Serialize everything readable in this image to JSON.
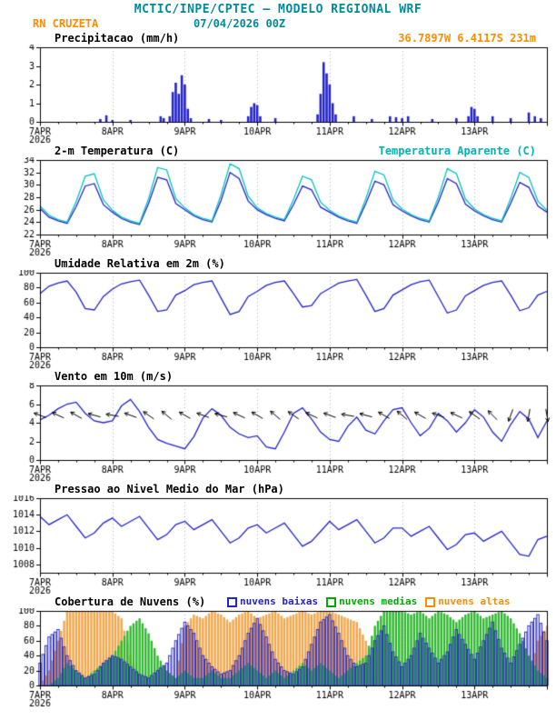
{
  "header": {
    "title": "MCTIC/INPE/CPTEC — MODELO REGIONAL WRF",
    "station": "RN CRUZETA",
    "run": "07/04/2026 00Z",
    "coords": "36.7897W 6.4117S 231m"
  },
  "colors": {
    "teal": "#008b9b",
    "orange": "#ff8c00",
    "blue": "#2424cc",
    "cyan": "#00c3c3",
    "green": "#00aa00",
    "grid": "#b0b0b0",
    "axis": "#000000"
  },
  "x_axis": {
    "labels": [
      "7APR",
      "8APR",
      "9APR",
      "10APR",
      "11APR",
      "12APR",
      "13APR"
    ],
    "year": "2026",
    "hours_max": 168,
    "major_tick_hours": 24,
    "minor_tick_hours": 6
  },
  "chart_data": [
    {
      "id": "precipitation",
      "type": "bar",
      "title": "Precipitacao (mm/h)",
      "ylim": [
        0,
        4
      ],
      "yticks": [
        0,
        1,
        2,
        3,
        4
      ],
      "bar_color": "#2424cc",
      "points": [
        [
          20,
          0.15
        ],
        [
          22,
          0.35
        ],
        [
          24,
          0.1
        ],
        [
          30,
          0.1
        ],
        [
          40,
          0.3
        ],
        [
          41,
          0.2
        ],
        [
          43,
          0.3
        ],
        [
          44,
          1.6
        ],
        [
          45,
          2.1
        ],
        [
          46,
          1.5
        ],
        [
          47,
          2.5
        ],
        [
          48,
          2.0
        ],
        [
          49,
          0.7
        ],
        [
          50,
          0.2
        ],
        [
          56,
          0.15
        ],
        [
          60,
          0.1
        ],
        [
          69,
          0.3
        ],
        [
          70,
          0.8
        ],
        [
          71,
          1.0
        ],
        [
          72,
          0.9
        ],
        [
          73,
          0.3
        ],
        [
          78,
          0.2
        ],
        [
          92,
          0.4
        ],
        [
          93,
          1.5
        ],
        [
          94,
          3.2
        ],
        [
          95,
          2.6
        ],
        [
          96,
          2.0
        ],
        [
          97,
          1.0
        ],
        [
          98,
          0.4
        ],
        [
          104,
          0.3
        ],
        [
          110,
          0.15
        ],
        [
          116,
          0.3
        ],
        [
          118,
          0.25
        ],
        [
          120,
          0.2
        ],
        [
          122,
          0.3
        ],
        [
          130,
          0.15
        ],
        [
          138,
          0.2
        ],
        [
          142,
          0.3
        ],
        [
          143,
          0.8
        ],
        [
          144,
          0.7
        ],
        [
          145,
          0.3
        ],
        [
          150,
          0.3
        ],
        [
          156,
          0.2
        ],
        [
          162,
          0.5
        ],
        [
          164,
          0.3
        ],
        [
          166,
          0.2
        ]
      ]
    },
    {
      "id": "temperature",
      "type": "line",
      "title": "2-m Temperatura (C)",
      "right_label": "Temperatura Aparente (C)",
      "ylim": [
        22,
        34
      ],
      "yticks": [
        22,
        24,
        26,
        28,
        30,
        32,
        34
      ],
      "step_hours": 3,
      "series": [
        {
          "name": "2-m Temperatura (C)",
          "color": "#2424cc",
          "values": [
            26.2,
            24.8,
            24.2,
            23.8,
            26.5,
            29.8,
            30.2,
            26.8,
            25.6,
            24.6,
            24.0,
            23.6,
            27.0,
            31.2,
            30.8,
            27.0,
            26.0,
            25.0,
            24.4,
            24.0,
            27.5,
            32.0,
            31.0,
            27.4,
            26.0,
            25.2,
            24.6,
            24.2,
            26.8,
            29.8,
            29.2,
            26.4,
            25.6,
            24.8,
            24.2,
            23.8,
            27.0,
            30.6,
            30.0,
            26.8,
            25.8,
            25.0,
            24.4,
            24.0,
            27.2,
            31.0,
            30.2,
            26.9,
            25.8,
            25.0,
            24.4,
            24.0,
            27.0,
            30.4,
            29.6,
            26.6,
            25.6
          ]
        },
        {
          "name": "Temperatura Aparente (C)",
          "color": "#00c3c3",
          "values": [
            26.6,
            25.1,
            24.4,
            24.0,
            27.3,
            31.4,
            31.8,
            27.6,
            25.9,
            24.8,
            24.2,
            23.8,
            27.8,
            32.8,
            32.4,
            27.8,
            26.3,
            25.2,
            24.6,
            24.2,
            28.4,
            33.4,
            32.6,
            28.2,
            26.3,
            25.4,
            24.8,
            24.4,
            27.6,
            31.4,
            30.8,
            27.2,
            25.9,
            25.0,
            24.4,
            24.0,
            27.8,
            32.2,
            31.6,
            27.6,
            26.1,
            25.2,
            24.6,
            24.2,
            28.0,
            32.6,
            31.8,
            27.7,
            26.1,
            25.2,
            24.6,
            24.2,
            27.8,
            32.0,
            31.2,
            27.4,
            25.9
          ]
        }
      ]
    },
    {
      "id": "humidity",
      "type": "line",
      "title": "Umidade Relativa em 2m (%)",
      "ylim": [
        0,
        100
      ],
      "yticks": [
        0,
        20,
        40,
        60,
        80,
        100
      ],
      "step_hours": 3,
      "series": [
        {
          "name": "Umidade Relativa em 2m (%)",
          "color": "#2424cc",
          "values": [
            72,
            82,
            86,
            89,
            74,
            52,
            50,
            68,
            78,
            85,
            88,
            90,
            70,
            48,
            50,
            70,
            76,
            84,
            87,
            89,
            66,
            44,
            48,
            68,
            75,
            83,
            87,
            89,
            72,
            54,
            56,
            72,
            79,
            86,
            89,
            91,
            70,
            48,
            52,
            70,
            77,
            84,
            88,
            90,
            68,
            46,
            50,
            69,
            76,
            83,
            87,
            89,
            70,
            49,
            53,
            70,
            75
          ]
        }
      ]
    },
    {
      "id": "wind",
      "type": "line",
      "title": "Vento em 10m (m/s)",
      "ylim": [
        0,
        8
      ],
      "yticks": [
        0,
        2,
        4,
        6,
        8
      ],
      "step_hours": 3,
      "series": [
        {
          "name": "Vento em 10m (m/s)",
          "color": "#2424cc",
          "values": [
            4.3,
            4.8,
            5.5,
            6.0,
            6.2,
            5.0,
            4.2,
            4.0,
            4.2,
            5.8,
            6.5,
            5.2,
            3.5,
            2.2,
            1.8,
            1.5,
            1.2,
            2.5,
            4.5,
            5.5,
            4.8,
            3.5,
            2.8,
            2.4,
            2.6,
            1.4,
            1.2,
            3.0,
            5.0,
            5.6,
            4.4,
            3.0,
            2.2,
            2.0,
            3.6,
            4.6,
            3.2,
            2.8,
            4.2,
            5.4,
            5.6,
            4.0,
            2.6,
            3.4,
            5.0,
            4.2,
            3.0,
            4.0,
            5.4,
            4.6,
            3.0,
            2.0,
            3.8,
            5.2,
            4.4,
            2.4,
            4.2
          ]
        }
      ],
      "barbs": {
        "step_hours": 6,
        "y": 4.8,
        "dirs": [
          110,
          115,
          120,
          105,
          100,
          110,
          125,
          130,
          120,
          110,
          105,
          115,
          120,
          130,
          125,
          115,
          110,
          100,
          105,
          120,
          130,
          120,
          110,
          115,
          125,
          135,
          20,
          10,
          350
        ]
      }
    },
    {
      "id": "pressure",
      "type": "line",
      "title": "Pressao ao Nivel Medio do Mar (hPa)",
      "ylim": [
        1007,
        1016
      ],
      "yticks": [
        1008,
        1010,
        1012,
        1014,
        1016
      ],
      "step_hours": 3,
      "series": [
        {
          "name": "Pressao ao Nivel Medio do Mar (hPa)",
          "color": "#2424cc",
          "values": [
            1013.8,
            1012.8,
            1013.4,
            1014.0,
            1012.6,
            1011.2,
            1011.8,
            1013.0,
            1013.6,
            1012.6,
            1013.2,
            1013.8,
            1012.4,
            1011.0,
            1011.6,
            1012.8,
            1013.2,
            1012.2,
            1012.8,
            1013.4,
            1012.0,
            1010.6,
            1011.2,
            1012.4,
            1012.8,
            1011.8,
            1012.4,
            1013.0,
            1011.6,
            1010.2,
            1010.8,
            1012.0,
            1013.2,
            1012.2,
            1012.8,
            1013.4,
            1012.0,
            1010.6,
            1011.2,
            1012.4,
            1012.4,
            1011.4,
            1012.0,
            1012.6,
            1011.2,
            1009.8,
            1010.4,
            1011.6,
            1011.8,
            1010.8,
            1011.4,
            1012.0,
            1010.6,
            1009.2,
            1009.0,
            1011.0,
            1011.4
          ]
        }
      ]
    },
    {
      "id": "cloud-cover",
      "type": "cloudbar",
      "title": "Cobertura de Nuvens (%)",
      "ylim": [
        0,
        100
      ],
      "yticks": [
        0,
        20,
        40,
        60,
        80,
        100
      ],
      "step_hours": 3,
      "legend": [
        {
          "label": "nuvens baixas",
          "color": "#2424cc"
        },
        {
          "label": "nuvens medias",
          "color": "#00aa00"
        },
        {
          "label": "nuvens altas",
          "color": "#ff8c00"
        }
      ],
      "series": [
        {
          "name": "nuvens altas",
          "style": "fill",
          "fill": "#f2a549",
          "color": "#e78b1e",
          "values": [
            0,
            20,
            60,
            100,
            100,
            100,
            100,
            100,
            100,
            90,
            40,
            10,
            0,
            0,
            0,
            10,
            80,
            95,
            90,
            100,
            95,
            85,
            95,
            100,
            90,
            95,
            100,
            90,
            95,
            100,
            95,
            100,
            100,
            95,
            90,
            85,
            60,
            20,
            0,
            0,
            0,
            0,
            0,
            0,
            0,
            0,
            0,
            0,
            0,
            0,
            0,
            0,
            0,
            0,
            10,
            60,
            80
          ]
        },
        {
          "name": "nuvens medias",
          "style": "fill",
          "fill": "#2eb82e",
          "color": "#009900",
          "values": [
            0,
            0,
            10,
            30,
            20,
            10,
            20,
            30,
            40,
            60,
            80,
            90,
            70,
            40,
            20,
            10,
            20,
            10,
            10,
            20,
            10,
            10,
            20,
            30,
            20,
            10,
            20,
            10,
            20,
            30,
            20,
            30,
            20,
            10,
            20,
            30,
            40,
            80,
            100,
            100,
            100,
            95,
            100,
            90,
            100,
            95,
            85,
            95,
            100,
            90,
            95,
            100,
            90,
            70,
            40,
            20,
            10
          ]
        },
        {
          "name": "nuvens baixas",
          "style": "outline",
          "fill": "#ffffff",
          "color": "#2e2ec8",
          "values": [
            30,
            65,
            75,
            40,
            20,
            10,
            15,
            30,
            40,
            35,
            25,
            15,
            10,
            20,
            30,
            60,
            85,
            70,
            40,
            25,
            15,
            20,
            40,
            70,
            90,
            65,
            35,
            20,
            15,
            25,
            55,
            85,
            95,
            70,
            40,
            25,
            30,
            60,
            80,
            45,
            25,
            40,
            70,
            50,
            30,
            45,
            75,
            55,
            35,
            60,
            85,
            50,
            30,
            55,
            80,
            95,
            60
          ]
        }
      ]
    }
  ]
}
